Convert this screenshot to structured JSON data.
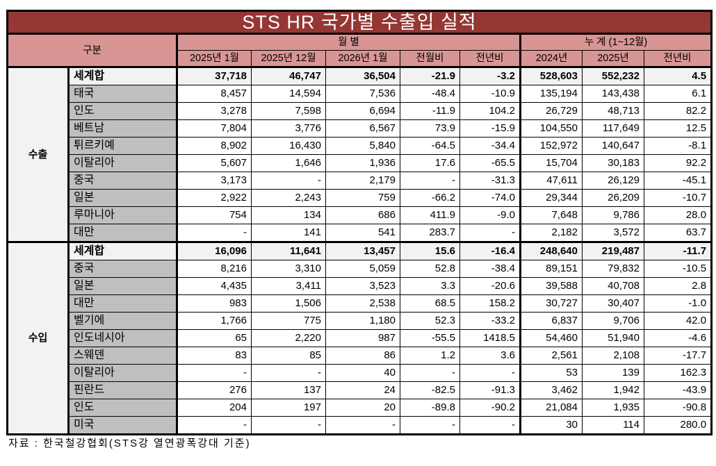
{
  "title": "STS HR 국가별 수출입 실적",
  "header": {
    "category": "구분",
    "monthly": "월    별",
    "cumulative": "누      계 (1~12월)",
    "columns": [
      "2025년 1월",
      "2025년 12월",
      "2026년 1월",
      "전월비",
      "전년비",
      "2024년",
      "2025년",
      "전년비"
    ]
  },
  "groups": [
    {
      "label": "수출",
      "rows": [
        {
          "name": "세계합",
          "values": [
            "37,718",
            "46,747",
            "36,504",
            "-21.9",
            "-3.2",
            "528,603",
            "552,232",
            "4.5"
          ],
          "total": true
        },
        {
          "name": "태국",
          "values": [
            "8,457",
            "14,594",
            "7,536",
            "-48.4",
            "-10.9",
            "135,194",
            "143,438",
            "6.1"
          ]
        },
        {
          "name": "인도",
          "values": [
            "3,278",
            "7,598",
            "6,694",
            "-11.9",
            "104.2",
            "26,729",
            "48,713",
            "82.2"
          ]
        },
        {
          "name": "베트남",
          "values": [
            "7,804",
            "3,776",
            "6,567",
            "73.9",
            "-15.9",
            "104,550",
            "117,649",
            "12.5"
          ]
        },
        {
          "name": "튀르키예",
          "values": [
            "8,902",
            "16,430",
            "5,840",
            "-64.5",
            "-34.4",
            "152,972",
            "140,647",
            "-8.1"
          ]
        },
        {
          "name": "이탈리아",
          "values": [
            "5,607",
            "1,646",
            "1,936",
            "17.6",
            "-65.5",
            "15,704",
            "30,183",
            "92.2"
          ]
        },
        {
          "name": "중국",
          "values": [
            "3,173",
            "-",
            "2,179",
            "-",
            "-31.3",
            "47,611",
            "26,129",
            "-45.1"
          ]
        },
        {
          "name": "일본",
          "values": [
            "2,922",
            "2,243",
            "759",
            "-66.2",
            "-74.0",
            "29,344",
            "26,209",
            "-10.7"
          ]
        },
        {
          "name": "루마니아",
          "values": [
            "754",
            "134",
            "686",
            "411.9",
            "-9.0",
            "7,648",
            "9,786",
            "28.0"
          ]
        },
        {
          "name": "대만",
          "values": [
            "-",
            "141",
            "541",
            "283.7",
            "-",
            "2,182",
            "3,572",
            "63.7"
          ]
        }
      ]
    },
    {
      "label": "수입",
      "rows": [
        {
          "name": "세계합",
          "values": [
            "16,096",
            "11,641",
            "13,457",
            "15.6",
            "-16.4",
            "248,640",
            "219,487",
            "-11.7"
          ],
          "total": true
        },
        {
          "name": "중국",
          "values": [
            "8,216",
            "3,310",
            "5,059",
            "52.8",
            "-38.4",
            "89,151",
            "79,832",
            "-10.5"
          ]
        },
        {
          "name": "일본",
          "values": [
            "4,435",
            "3,411",
            "3,523",
            "3.3",
            "-20.6",
            "39,588",
            "40,708",
            "2.8"
          ]
        },
        {
          "name": "대만",
          "values": [
            "983",
            "1,506",
            "2,538",
            "68.5",
            "158.2",
            "30,727",
            "30,407",
            "-1.0"
          ]
        },
        {
          "name": "벨기에",
          "values": [
            "1,766",
            "775",
            "1,180",
            "52.3",
            "-33.2",
            "6,837",
            "9,706",
            "42.0"
          ]
        },
        {
          "name": "인도네시아",
          "values": [
            "65",
            "2,220",
            "987",
            "-55.5",
            "1418.5",
            "54,460",
            "51,940",
            "-4.6"
          ]
        },
        {
          "name": "스웨덴",
          "values": [
            "83",
            "85",
            "86",
            "1.2",
            "3.6",
            "2,561",
            "2,108",
            "-17.7"
          ]
        },
        {
          "name": "이탈리아",
          "values": [
            "-",
            "-",
            "40",
            "-",
            "-",
            "53",
            "139",
            "162.3"
          ]
        },
        {
          "name": "핀란드",
          "values": [
            "276",
            "137",
            "24",
            "-82.5",
            "-91.3",
            "3,462",
            "1,942",
            "-43.9"
          ]
        },
        {
          "name": "인도",
          "values": [
            "204",
            "197",
            "20",
            "-89.8",
            "-90.2",
            "21,084",
            "1,935",
            "-90.8"
          ]
        },
        {
          "name": "미국",
          "values": [
            "-",
            "-",
            "-",
            "-",
            "-",
            "30",
            "114",
            "280.0"
          ]
        }
      ]
    }
  ],
  "source": "자료 : 한국철강협회(STS강 열연광폭강대 기준)"
}
